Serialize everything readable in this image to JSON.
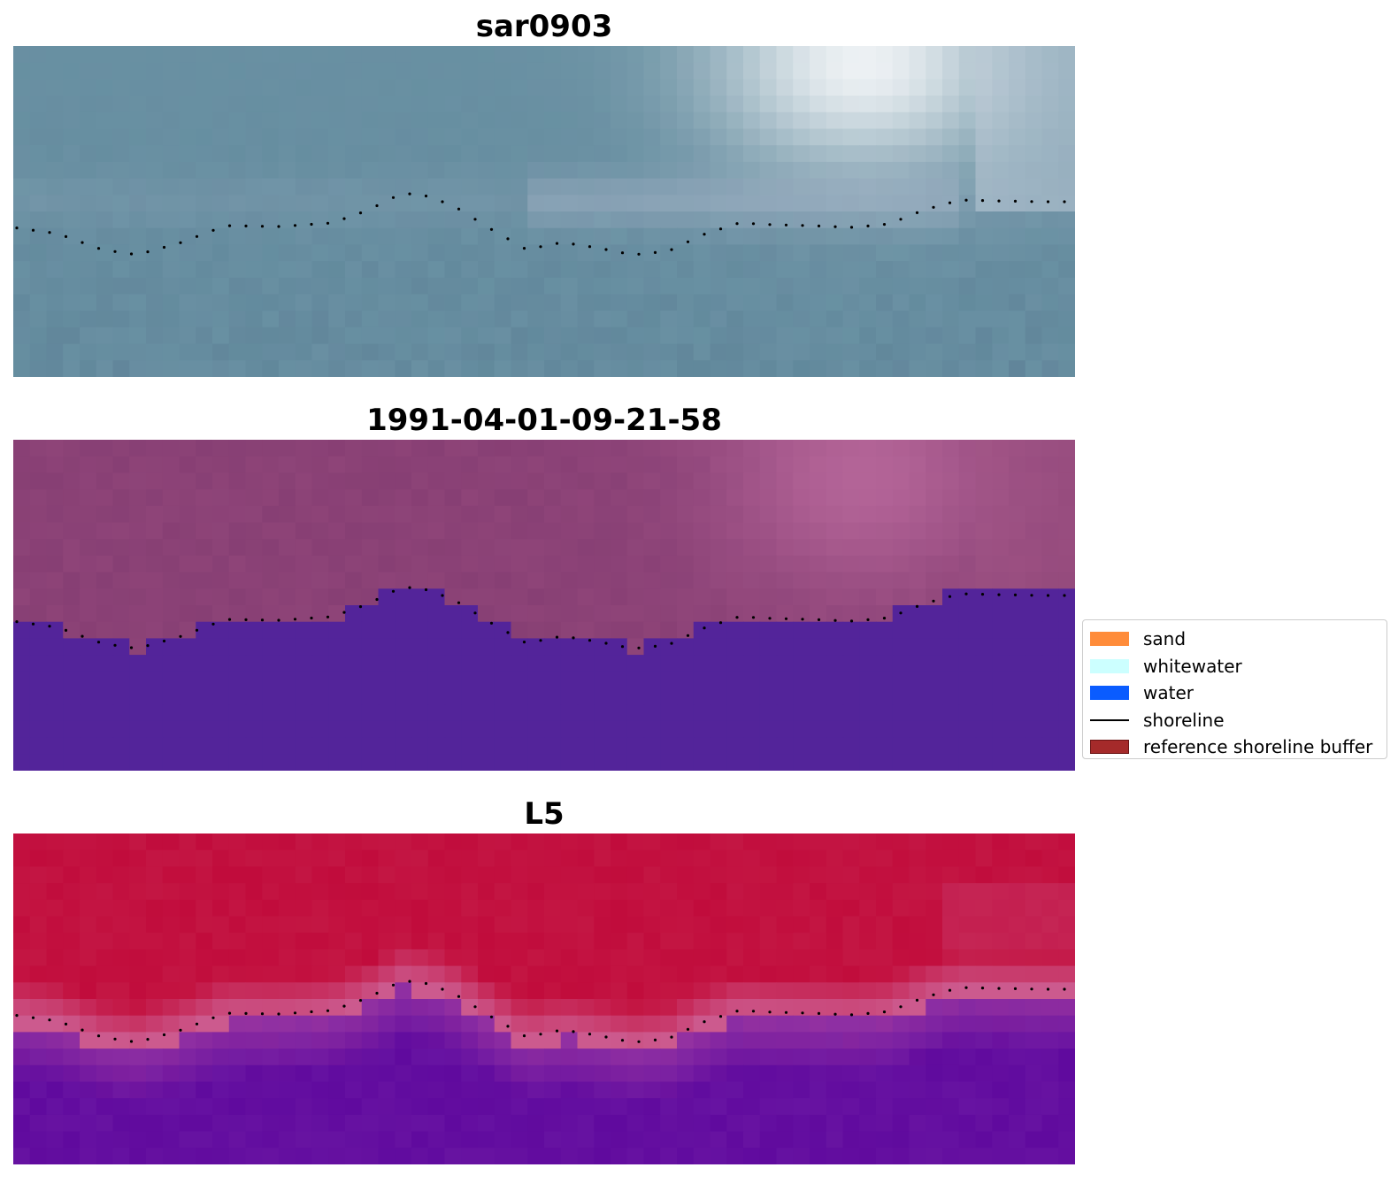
{
  "panels": [
    {
      "title": "sar0903",
      "style": "sar"
    },
    {
      "title": "1991-04-01-09-21-58",
      "style": "class"
    },
    {
      "title": "L5",
      "style": "index"
    }
  ],
  "legend": {
    "items": [
      {
        "label": "sand",
        "color": "#ff8c3a",
        "kind": "patch"
      },
      {
        "label": "whitewater",
        "color": "#ccffff",
        "kind": "patch"
      },
      {
        "label": "water",
        "color": "#0a5cff",
        "kind": "patch"
      },
      {
        "label": "shoreline",
        "color": "#000000",
        "kind": "line"
      },
      {
        "label": "reference shoreline buffer",
        "color": "#a52a2a",
        "kind": "patch"
      }
    ]
  },
  "colors": {
    "sar_base": "#6f96a8",
    "sar_bright": "#f4f6f8",
    "class_land": "#8e4478",
    "class_land_light": "#b8689b",
    "class_water": "#53249a",
    "index_top": "#c10c3c",
    "index_band": "#cc5a8e",
    "index_bottom": "#600a9e",
    "shoreline_dots": "#000000"
  }
}
